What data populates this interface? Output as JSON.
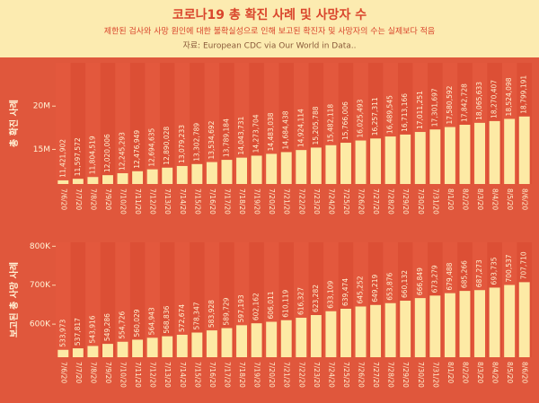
{
  "header": {
    "title": "코로나19 총 확진 사례 및 사망자 수",
    "subtitle": "제한된 검사와 사망 원인에 대한 불확실성으로 인해 보고된 확진자 및 사망자의 수는 실제보다 적음",
    "source": "자료: European CDC via Our World in Data.."
  },
  "chart_data": [
    {
      "type": "bar",
      "ylabel": "총 확진 사례",
      "color": "#fdeaa5",
      "categories": [
        "7/6/20",
        "7/7/20",
        "7/8/20",
        "7/9/20",
        "7/10/20",
        "7/11/20",
        "7/12/20",
        "7/13/20",
        "7/14/20",
        "7/15/20",
        "7/16/20",
        "7/17/20",
        "7/18/20",
        "7/19/20",
        "7/20/20",
        "7/21/20",
        "7/22/20",
        "7/23/20",
        "7/24/20",
        "7/25/20",
        "7/26/20",
        "7/27/20",
        "7/28/20",
        "7/29/20",
        "7/30/20",
        "7/31/20",
        "8/1/20",
        "8/2/20",
        "8/3/20",
        "8/4/20",
        "8/5/20",
        "8/6/20"
      ],
      "values": [
        11421902,
        11597572,
        11804519,
        12020006,
        12245293,
        12476949,
        12694635,
        12890028,
        13079233,
        13302789,
        13534692,
        13789184,
        14043731,
        14273704,
        14483038,
        14684438,
        14924114,
        15205788,
        15482118,
        15766006,
        16025493,
        16257311,
        16489545,
        16713166,
        17011251,
        17301697,
        17580592,
        17842728,
        18065633,
        18270407,
        18524098,
        18799191
      ],
      "value_labels": [
        "11,421,902",
        "11,597,572",
        "11,804,519",
        "12,020,006",
        "12,245,293",
        "12,476,949",
        "12,694,635",
        "12,890,028",
        "13,079,233",
        "13,302,789",
        "13,534,692",
        "13,789,184",
        "14,043,731",
        "14,273,704",
        "14,483,038",
        "14,684,438",
        "14,924,114",
        "15,205,788",
        "15,482,118",
        "15,766,006",
        "16,025,493",
        "16,257,311",
        "16,489,545",
        "16,713,166",
        "17,011,251",
        "17,301,697",
        "17,580,592",
        "17,842,728",
        "18,065,633",
        "18,270,407",
        "18,524,098",
        "18,799,191"
      ],
      "ylim": [
        11000000,
        25000000
      ],
      "yticks": [
        {
          "value": 15000000,
          "label": "15M"
        },
        {
          "value": 20000000,
          "label": "20M"
        }
      ]
    },
    {
      "type": "bar",
      "ylabel": "보고된 총 사망 사례",
      "color": "#fdeaa5",
      "categories": [
        "7/6/20",
        "7/7/20",
        "7/8/20",
        "7/9/20",
        "7/10/20",
        "7/11/20",
        "7/12/20",
        "7/13/20",
        "7/14/20",
        "7/15/20",
        "7/16/20",
        "7/17/20",
        "7/18/20",
        "7/19/20",
        "7/20/20",
        "7/21/20",
        "7/22/20",
        "7/23/20",
        "7/24/20",
        "7/25/20",
        "7/26/20",
        "7/27/20",
        "7/28/20",
        "7/29/20",
        "7/30/20",
        "7/31/20",
        "8/1/20",
        "8/2/20",
        "8/3/20",
        "8/4/20",
        "8/5/20",
        "8/6/20"
      ],
      "values": [
        533973,
        537817,
        543916,
        549286,
        554726,
        560029,
        564943,
        568836,
        572674,
        578347,
        583928,
        589729,
        597193,
        602162,
        606011,
        610119,
        616327,
        623282,
        633109,
        639474,
        645252,
        649219,
        653876,
        660132,
        666849,
        673279,
        679488,
        685266,
        687273,
        693735,
        700537,
        707710
      ],
      "value_labels": [
        "533,973",
        "537,817",
        "543,916",
        "549,286",
        "554,726",
        "560,029",
        "564,943",
        "568,836",
        "572,674",
        "578,347",
        "583,928",
        "589,729",
        "597,193",
        "602,162",
        "606,011",
        "610,119",
        "616,327",
        "623,282",
        "633,109",
        "639,474",
        "645,252",
        "649,219",
        "653,876",
        "660,132",
        "666,849",
        "673,279",
        "679,488",
        "685,266",
        "687,273",
        "693,735",
        "700,537",
        "707,710"
      ],
      "ylim": [
        515000,
        810000
      ],
      "yticks": [
        {
          "value": 600000,
          "label": "600K"
        },
        {
          "value": 700000,
          "label": "700K"
        },
        {
          "value": 800000,
          "label": "800K"
        }
      ]
    }
  ]
}
